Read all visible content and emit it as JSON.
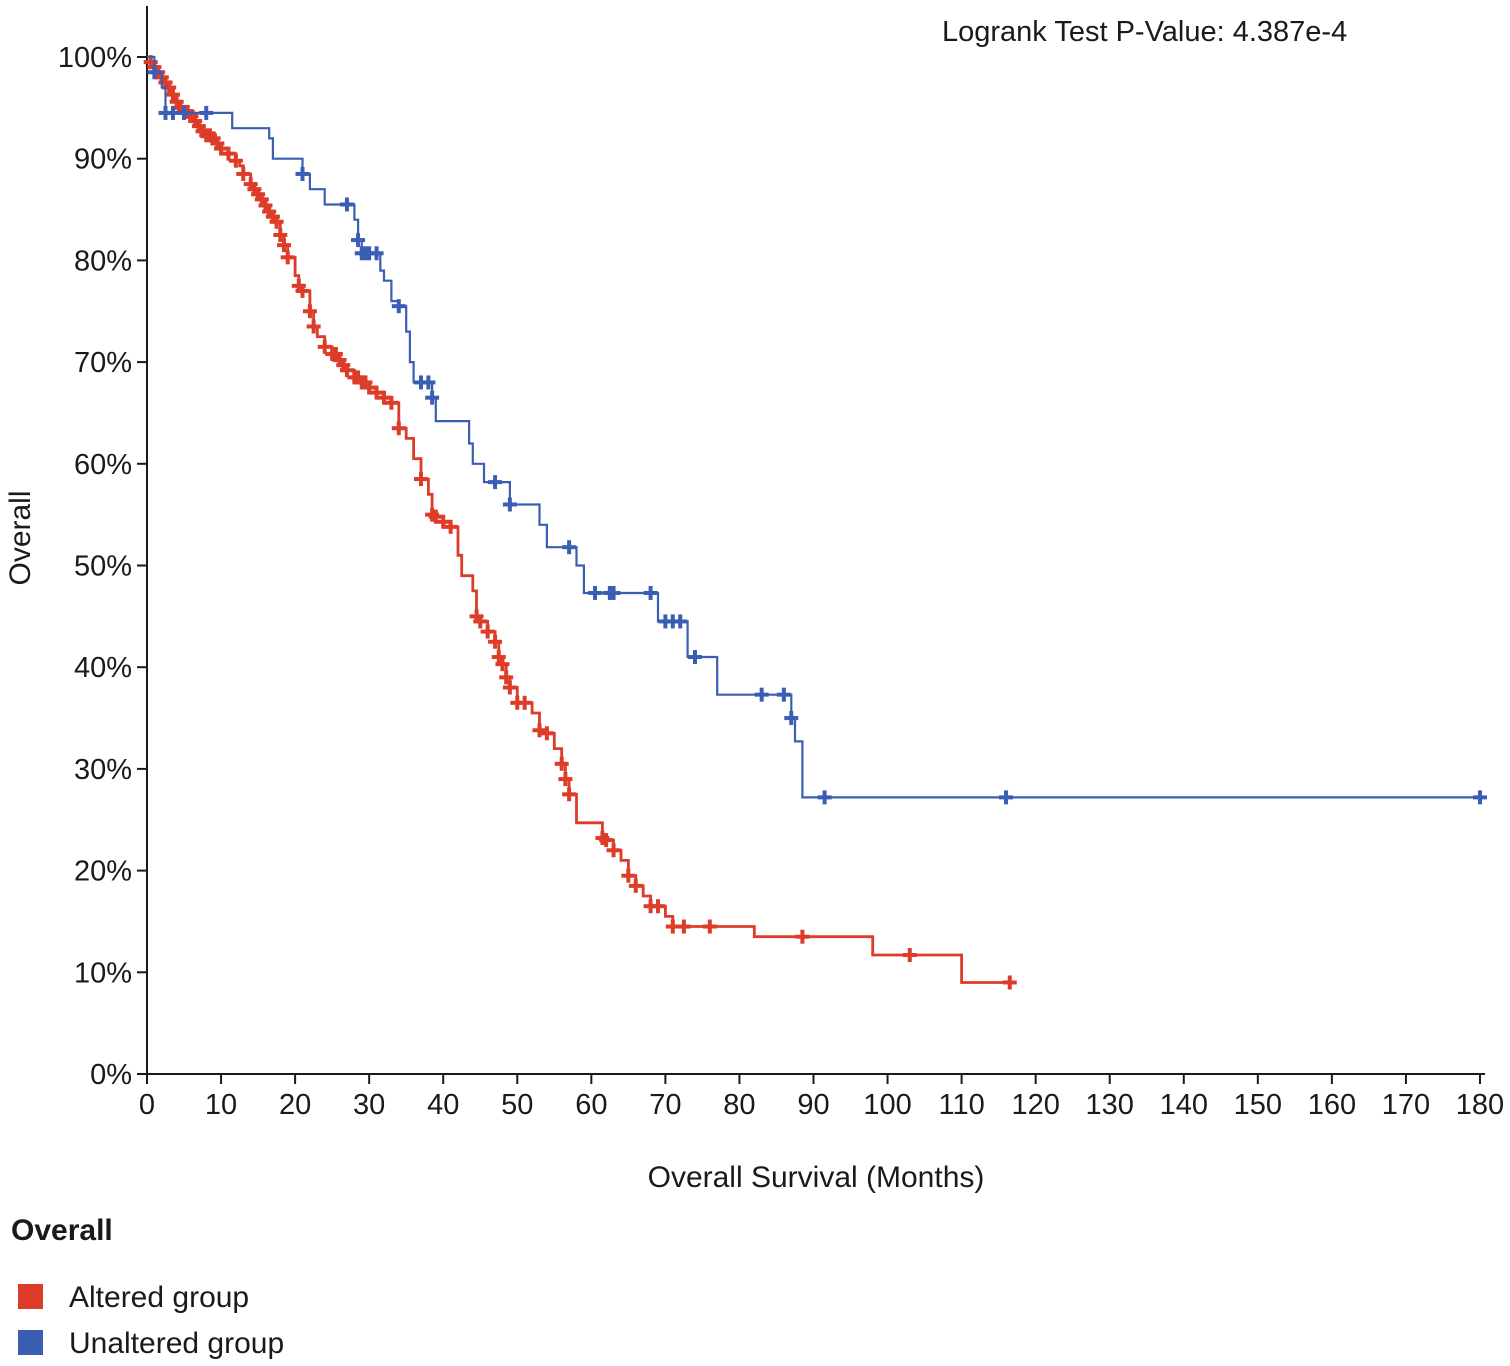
{
  "chart_data": {
    "type": "line",
    "subtype": "kaplan-meier",
    "annotation": "Logrank Test P-Value: 4.387e-4",
    "xlabel": "Overall Survival (Months)",
    "ylabel": "Overall",
    "xlim": [
      0,
      180
    ],
    "ylim": [
      0,
      100
    ],
    "xticks": [
      0,
      10,
      20,
      30,
      40,
      50,
      60,
      70,
      80,
      90,
      100,
      110,
      120,
      130,
      140,
      150,
      160,
      170,
      180
    ],
    "yticks": [
      0,
      10,
      20,
      30,
      40,
      50,
      60,
      70,
      80,
      90,
      100
    ],
    "ytick_labels": [
      "0%",
      "10%",
      "20%",
      "30%",
      "40%",
      "50%",
      "60%",
      "70%",
      "80%",
      "90%",
      "100%"
    ],
    "grid": false,
    "legend_title": "Overall",
    "series": [
      {
        "name": "Altered group",
        "color": "#dc3c28",
        "steps": [
          [
            0,
            100
          ],
          [
            0.5,
            99.5
          ],
          [
            1,
            99
          ],
          [
            1.5,
            98.5
          ],
          [
            2,
            98
          ],
          [
            2.5,
            97.5
          ],
          [
            3,
            97
          ],
          [
            3.5,
            96.3
          ],
          [
            4,
            95.6
          ],
          [
            4.5,
            95
          ],
          [
            5,
            94.6
          ],
          [
            6,
            94.2
          ],
          [
            6.5,
            93.7
          ],
          [
            7,
            93.2
          ],
          [
            7.5,
            92.7
          ],
          [
            8,
            92.3
          ],
          [
            9,
            92
          ],
          [
            9.5,
            91.5
          ],
          [
            10,
            91
          ],
          [
            11,
            90.5
          ],
          [
            12,
            89.8
          ],
          [
            12.5,
            89.3
          ],
          [
            13,
            88.5
          ],
          [
            14,
            87.5
          ],
          [
            14.5,
            87
          ],
          [
            15,
            86.5
          ],
          [
            15.5,
            86
          ],
          [
            16,
            85.4
          ],
          [
            16.5,
            84.8
          ],
          [
            17,
            84.3
          ],
          [
            17.5,
            83.8
          ],
          [
            18,
            82.5
          ],
          [
            18.5,
            81.5
          ],
          [
            19,
            80.3
          ],
          [
            20,
            78.5
          ],
          [
            20.5,
            77.5
          ],
          [
            21,
            77
          ],
          [
            22,
            75
          ],
          [
            22.5,
            73.5
          ],
          [
            23,
            72.5
          ],
          [
            24,
            71.5
          ],
          [
            25,
            70.8
          ],
          [
            26,
            70.2
          ],
          [
            26.5,
            69.7
          ],
          [
            27,
            69.2
          ],
          [
            28,
            68.5
          ],
          [
            29,
            68
          ],
          [
            30,
            67.5
          ],
          [
            31,
            67
          ],
          [
            32,
            66.5
          ],
          [
            33,
            66
          ],
          [
            34,
            63.5
          ],
          [
            35,
            62.5
          ],
          [
            36,
            60.5
          ],
          [
            37,
            58.5
          ],
          [
            38,
            57
          ],
          [
            38.5,
            55
          ],
          [
            39,
            54.8
          ],
          [
            40,
            54.3
          ],
          [
            41,
            53.8
          ],
          [
            42,
            51
          ],
          [
            42.5,
            49
          ],
          [
            44,
            47.5
          ],
          [
            44.5,
            45
          ],
          [
            45,
            44.5
          ],
          [
            46,
            43.5
          ],
          [
            47,
            42.5
          ],
          [
            47.5,
            41
          ],
          [
            48,
            40.3
          ],
          [
            48.5,
            39
          ],
          [
            49,
            38
          ],
          [
            50,
            36.5
          ],
          [
            51,
            36.5
          ],
          [
            52,
            35.5
          ],
          [
            53,
            33.8
          ],
          [
            54,
            33.5
          ],
          [
            55,
            32
          ],
          [
            56,
            30.5
          ],
          [
            56.5,
            29
          ],
          [
            57,
            27.5
          ],
          [
            58,
            24.7
          ],
          [
            61,
            24.7
          ],
          [
            61.5,
            23.2
          ],
          [
            62,
            23
          ],
          [
            63,
            22
          ],
          [
            64,
            21
          ],
          [
            65,
            19.5
          ],
          [
            66,
            18.5
          ],
          [
            67,
            17.5
          ],
          [
            68,
            16.5
          ],
          [
            70,
            15.5
          ],
          [
            71,
            14.5
          ],
          [
            77,
            14.5
          ],
          [
            82,
            13.5
          ],
          [
            98,
            11.7
          ],
          [
            110,
            9
          ],
          [
            116.5,
            9
          ]
        ],
        "censored_x": [
          0.5,
          1,
          1.5,
          2,
          2.5,
          3,
          3.5,
          4,
          4.5,
          5,
          5.5,
          6,
          6.5,
          7,
          7.5,
          8,
          8.5,
          9,
          9.5,
          10,
          11,
          12,
          13,
          14,
          14.5,
          15,
          15.5,
          16,
          16.5,
          17,
          17.5,
          18,
          18.5,
          19,
          20.5,
          21,
          22,
          22.5,
          24,
          25,
          25.5,
          26,
          26.5,
          27,
          28,
          28.5,
          29,
          29.5,
          30,
          31,
          32,
          33,
          34,
          37,
          38.5,
          39,
          40,
          41,
          44.5,
          45,
          46,
          47,
          47.5,
          48,
          48.5,
          49,
          50,
          51,
          53,
          54,
          56,
          56.5,
          57,
          61.5,
          62,
          63,
          65,
          66,
          68,
          69,
          71,
          72.5,
          76,
          88.5,
          103,
          116.5
        ]
      },
      {
        "name": "Unaltered group",
        "color": "#3a5eb4",
        "steps": [
          [
            0,
            100
          ],
          [
            1,
            98.5
          ],
          [
            2,
            97
          ],
          [
            2.5,
            94.5
          ],
          [
            11.5,
            93
          ],
          [
            16.5,
            92
          ],
          [
            17,
            90
          ],
          [
            20,
            90
          ],
          [
            21,
            88.5
          ],
          [
            22,
            87
          ],
          [
            24,
            85.5
          ],
          [
            27,
            85.5
          ],
          [
            28,
            84
          ],
          [
            28.5,
            82
          ],
          [
            29,
            80.7
          ],
          [
            31.5,
            79
          ],
          [
            32,
            78
          ],
          [
            33,
            76
          ],
          [
            34,
            75.5
          ],
          [
            35,
            73
          ],
          [
            35.5,
            70
          ],
          [
            36,
            68
          ],
          [
            38.5,
            66.5
          ],
          [
            39,
            64.2
          ],
          [
            43,
            64.2
          ],
          [
            43.5,
            62
          ],
          [
            44,
            60
          ],
          [
            45.5,
            58.2
          ],
          [
            48,
            58.2
          ],
          [
            49,
            56
          ],
          [
            53,
            54
          ],
          [
            54,
            51.8
          ],
          [
            57,
            51.8
          ],
          [
            58,
            50
          ],
          [
            59,
            47.3
          ],
          [
            67,
            47.3
          ],
          [
            69,
            44.5
          ],
          [
            72,
            44.5
          ],
          [
            73,
            41
          ],
          [
            77,
            37.3
          ],
          [
            86,
            37.3
          ],
          [
            87,
            35
          ],
          [
            87.5,
            32.7
          ],
          [
            88.5,
            27.2
          ],
          [
            180,
            27.2
          ]
        ],
        "censored_x": [
          1,
          2.5,
          3.5,
          5,
          8,
          21,
          27,
          28.5,
          29,
          29.5,
          30,
          31,
          34,
          37,
          38,
          38.5,
          47,
          49,
          57,
          60.5,
          62.5,
          63,
          68,
          70,
          71,
          72,
          74,
          83,
          86,
          87,
          91.5,
          116,
          180
        ]
      }
    ]
  }
}
